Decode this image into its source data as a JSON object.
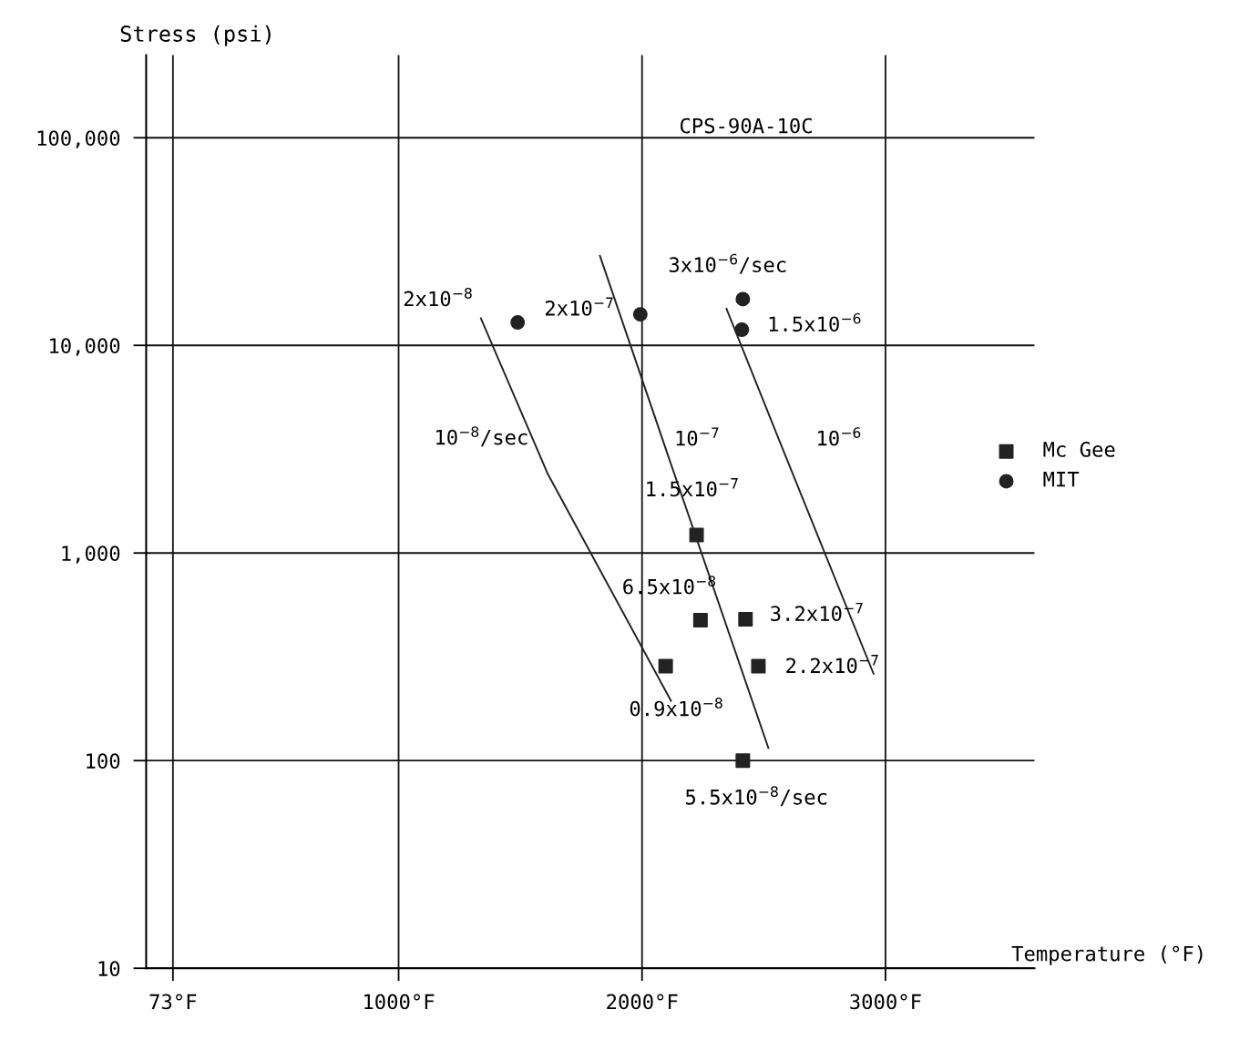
{
  "chart_data": {
    "type": "scatter",
    "xlabel": "Temperature (°F)",
    "ylabel": "Stress (psi)",
    "xlim": [
      -37,
      3612
    ],
    "ylim": [
      10,
      250000
    ],
    "log": "y",
    "grid": true,
    "legend": "right",
    "xticks": [
      {
        "value": 73,
        "label": "73°F"
      },
      {
        "value": 1000,
        "label": "1000°F"
      },
      {
        "value": 2000,
        "label": "2000°F"
      },
      {
        "value": 3000,
        "label": "3000°F"
      }
    ],
    "yticks": [
      10,
      100,
      {
        "value": 1000,
        "label": "1,000"
      },
      {
        "value": 10000,
        "label": "10,000"
      },
      {
        "value": 100000,
        "label": "100,000"
      }
    ],
    "series": [
      {
        "name": "Mc Gee",
        "marker": "square",
        "color": "#222222",
        "x": [
          2224,
          2240,
          2425,
          2097,
          2478,
          2414
        ],
        "values": [
          1220,
          475,
          480,
          285,
          285,
          100
        ]
      },
      {
        "name": "MIT",
        "marker": "circle",
        "color": "#222222",
        "x": [
          1489,
          1993,
          2414,
          2410
        ],
        "values": [
          12900,
          14100,
          16700,
          11900
        ]
      },
      {
        "type": "line",
        "marker": "none",
        "color": "#222222",
        "x": [
          1338,
          1613,
          2119
        ],
        "values": [
          13500,
          2400,
          194
        ]
      },
      {
        "type": "line",
        "marker": "none",
        "color": "#222222",
        "x": [
          1827,
          2085,
          2519
        ],
        "values": [
          27000,
          3500,
          115
        ]
      },
      {
        "type": "line",
        "marker": "none",
        "color": "#222222",
        "x": [
          2347,
          2563,
          2951
        ],
        "values": [
          15000,
          3500,
          262
        ]
      }
    ],
    "annotations": [
      "CPS-90A-10C",
      {
        "text": "2x10$^{−8}$",
        "x": 1338,
        "y": 13500
      },
      {
        "text": "2x10$^{−7}$",
        "x": 1903,
        "y": 14800
      },
      {
        "text": "3x10$^{−6}$/sec",
        "x": 2414,
        "y": 16700
      },
      {
        "text": "1.5x10$^{−6}$",
        "x": 2410,
        "y": 11900
      },
      {
        "text": "10$^{−8}$/sec",
        "x": 1551,
        "y": 3550
      },
      {
        "text": "10$^{−7}$",
        "x": 2085,
        "y": 3500
      },
      {
        "text": "10$^{−6}$",
        "x": 2563,
        "y": 3500
      },
      {
        "text": "1.5x10$^{−7}$",
        "x": 2224,
        "y": 1220
      },
      {
        "text": "6.5x10$^{−8}$",
        "x": 2240,
        "y": 475
      },
      {
        "text": "3.2x10$^{−7}$",
        "x": 2425,
        "y": 480
      },
      {
        "text": "2.2x10$^{−7}$",
        "x": 2478,
        "y": 285
      },
      {
        "text": "0.9x10$^{−8}$",
        "x": 2097,
        "y": 285
      },
      {
        "text": "5.5x10$^{−8}$/sec",
        "x": 2414,
        "y": 100
      }
    ]
  }
}
